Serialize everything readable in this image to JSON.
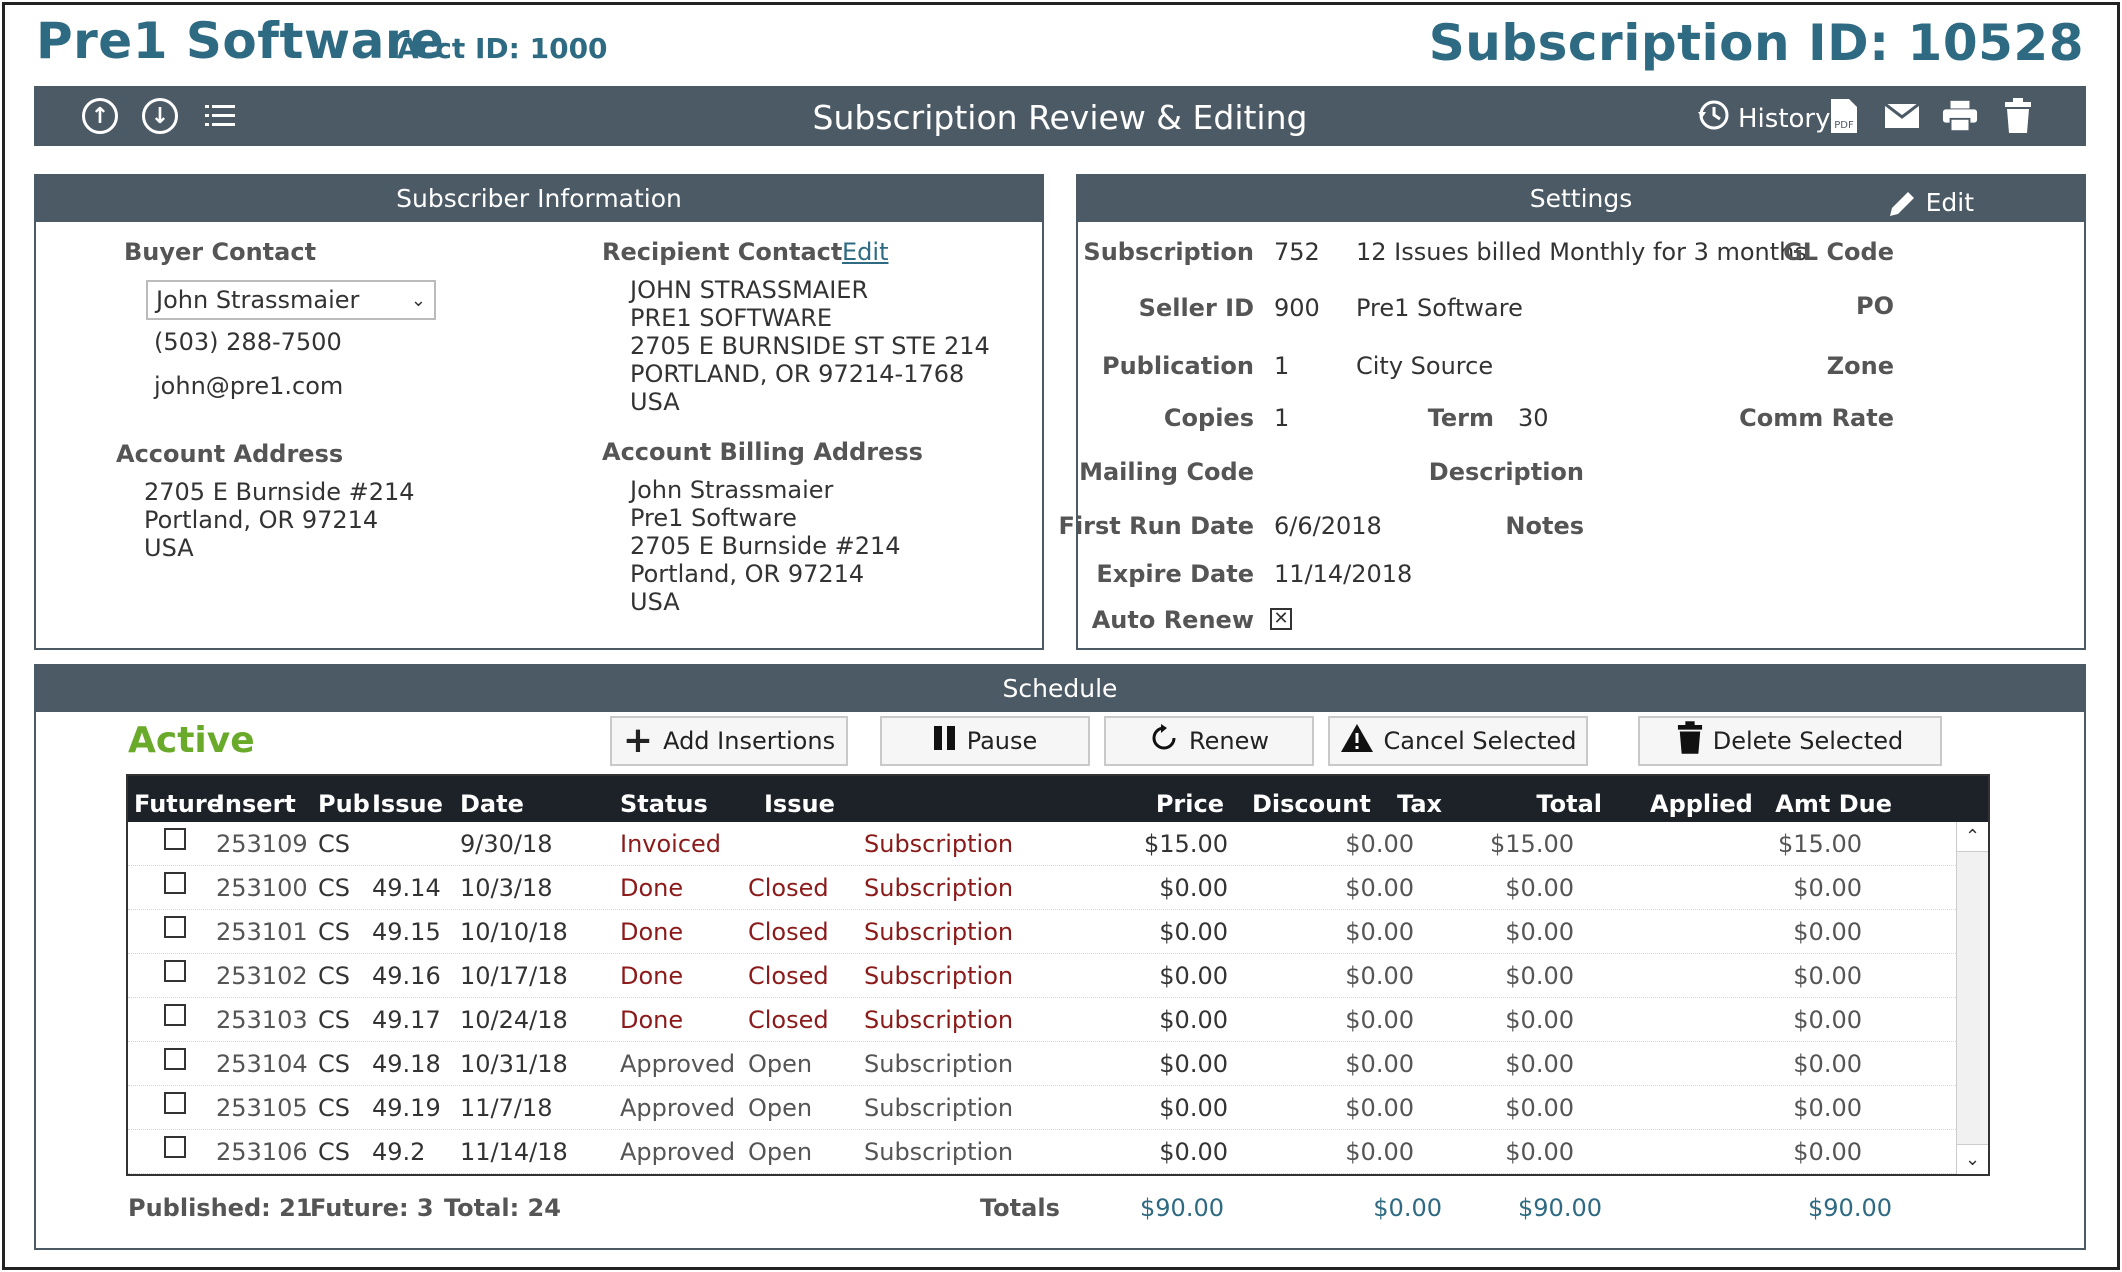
{
  "header": {
    "company": "Pre1 Software",
    "acct_id": "Acct ID: 1000",
    "subscription_id": "Subscription ID: 10528"
  },
  "toolbar": {
    "title": "Subscription Review & Editing",
    "history_label": "History",
    "icons": [
      "up-arrow-circle-icon",
      "down-arrow-circle-icon",
      "list-icon",
      "history-icon",
      "pdf-icon",
      "mail-icon",
      "print-icon",
      "trash-icon"
    ]
  },
  "subscriber": {
    "title": "Subscriber Information",
    "buyer_contact_label": "Buyer Contact",
    "buyer_contact_value": "John Strassmaier",
    "phone": "(503) 288-7500",
    "email": "john@pre1.com",
    "recipient_contact_label": "Recipient Contact",
    "recipient_edit_label": "Edit",
    "recipient_lines": [
      "JOHN STRASSMAIER",
      "PRE1 SOFTWARE",
      "2705 E BURNSIDE ST STE 214",
      "PORTLAND,  OR  97214-1768",
      "USA"
    ],
    "account_address_label": "Account Address",
    "account_address_lines": [
      "2705 E Burnside #214",
      "Portland,  OR  97214",
      "USA"
    ],
    "billing_address_label": "Account Billing Address",
    "billing_address_lines": [
      "John Strassmaier",
      "Pre1 Software",
      "2705 E Burnside #214",
      "Portland,  OR  97214",
      "USA"
    ]
  },
  "settings": {
    "title": "Settings",
    "edit_label": "Edit",
    "subscription_label": "Subscription",
    "subscription_value": "752",
    "subscription_desc": "12 Issues billed Monthly for 3 months",
    "gl_code_label": "GL Code",
    "seller_id_label": "Seller ID",
    "seller_id_value": "900",
    "seller_name": "Pre1 Software",
    "po_label": "PO",
    "publication_label": "Publication",
    "publication_value": "1",
    "publication_name": "City Source",
    "zone_label": "Zone",
    "copies_label": "Copies",
    "copies_value": "1",
    "term_label": "Term",
    "term_value": "30",
    "comm_rate_label": "Comm Rate",
    "mailing_code_label": "Mailing Code",
    "description_label": "Description",
    "first_run_label": "First Run Date",
    "first_run_value": "6/6/2018",
    "notes_label": "Notes",
    "expire_label": "Expire Date",
    "expire_value": "11/14/2018",
    "auto_renew_label": "Auto Renew",
    "auto_renew_checked": true
  },
  "schedule": {
    "title": "Schedule",
    "status": "Active",
    "buttons": {
      "add": "Add Insertions",
      "pause": "Pause",
      "renew": "Renew",
      "cancel": "Cancel Selected",
      "delete": "Delete Selected"
    },
    "columns": {
      "future": "Future",
      "insert": "Insert",
      "pub": "Pub",
      "issue": "Issue",
      "date": "Date",
      "status": "Status",
      "issue_status": "Issue",
      "price": "Price",
      "discount": "Discount",
      "tax": "Tax",
      "total": "Total",
      "applied": "Applied",
      "amt_due": "Amt Due"
    },
    "rows": [
      {
        "insert": "253109",
        "pub": "CS",
        "issue": "",
        "date": "9/30/18",
        "status": "Invoiced",
        "issue_status": "",
        "type": "Subscription",
        "price": "$15.00",
        "tax": "$0.00",
        "total": "$15.00",
        "amt_due": "$15.00",
        "red": true
      },
      {
        "insert": "253100",
        "pub": "CS",
        "issue": "49.14",
        "date": "10/3/18",
        "status": "Done",
        "issue_status": "Closed",
        "type": "Subscription",
        "price": "$0.00",
        "tax": "$0.00",
        "total": "$0.00",
        "amt_due": "$0.00",
        "red": true
      },
      {
        "insert": "253101",
        "pub": "CS",
        "issue": "49.15",
        "date": "10/10/18",
        "status": "Done",
        "issue_status": "Closed",
        "type": "Subscription",
        "price": "$0.00",
        "tax": "$0.00",
        "total": "$0.00",
        "amt_due": "$0.00",
        "red": true
      },
      {
        "insert": "253102",
        "pub": "CS",
        "issue": "49.16",
        "date": "10/17/18",
        "status": "Done",
        "issue_status": "Closed",
        "type": "Subscription",
        "price": "$0.00",
        "tax": "$0.00",
        "total": "$0.00",
        "amt_due": "$0.00",
        "red": true
      },
      {
        "insert": "253103",
        "pub": "CS",
        "issue": "49.17",
        "date": "10/24/18",
        "status": "Done",
        "issue_status": "Closed",
        "type": "Subscription",
        "price": "$0.00",
        "tax": "$0.00",
        "total": "$0.00",
        "amt_due": "$0.00",
        "red": true
      },
      {
        "insert": "253104",
        "pub": "CS",
        "issue": "49.18",
        "date": "10/31/18",
        "status": "Approved",
        "issue_status": "Open",
        "type": "Subscription",
        "price": "$0.00",
        "tax": "$0.00",
        "total": "$0.00",
        "amt_due": "$0.00",
        "red": false
      },
      {
        "insert": "253105",
        "pub": "CS",
        "issue": "49.19",
        "date": "11/7/18",
        "status": "Approved",
        "issue_status": "Open",
        "type": "Subscription",
        "price": "$0.00",
        "tax": "$0.00",
        "total": "$0.00",
        "amt_due": "$0.00",
        "red": false
      },
      {
        "insert": "253106",
        "pub": "CS",
        "issue": "49.2",
        "date": "11/14/18",
        "status": "Approved",
        "issue_status": "Open",
        "type": "Subscription",
        "price": "$0.00",
        "tax": "$0.00",
        "total": "$0.00",
        "amt_due": "$0.00",
        "red": false
      }
    ],
    "footer": {
      "published": "Published: 21",
      "future": "Future: 3",
      "total": "Total: 24",
      "totals_label": "Totals",
      "price_total": "$90.00",
      "tax_total": "$0.00",
      "total_total": "$90.00",
      "amt_due_total": "$90.00"
    }
  },
  "colors": {
    "brand": "#2e6a82",
    "header_bar": "#4c5a66",
    "active_green": "#6aaa2a",
    "status_red": "#8b1a1a",
    "totals_blue": "#2e6a82"
  }
}
